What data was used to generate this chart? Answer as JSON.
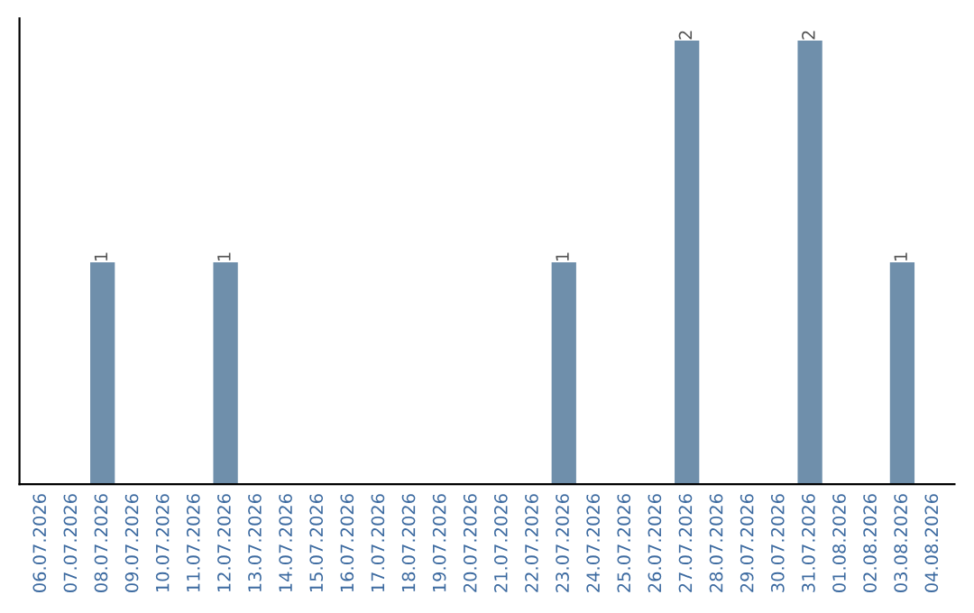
{
  "chart_data": {
    "type": "bar",
    "categories": [
      "06.07.2026",
      "07.07.2026",
      "08.07.2026",
      "09.07.2026",
      "10.07.2026",
      "11.07.2026",
      "12.07.2026",
      "13.07.2026",
      "14.07.2026",
      "15.07.2026",
      "16.07.2026",
      "17.07.2026",
      "18.07.2026",
      "19.07.2026",
      "20.07.2026",
      "21.07.2026",
      "22.07.2026",
      "23.07.2026",
      "24.07.2026",
      "25.07.2026",
      "26.07.2026",
      "27.07.2026",
      "28.07.2026",
      "29.07.2026",
      "30.07.2026",
      "31.07.2026",
      "01.08.2026",
      "02.08.2026",
      "03.08.2026",
      "04.08.2026"
    ],
    "values": [
      0,
      0,
      1,
      0,
      0,
      0,
      1,
      0,
      0,
      0,
      0,
      0,
      0,
      0,
      0,
      0,
      0,
      1,
      0,
      0,
      0,
      2,
      0,
      0,
      0,
      2,
      0,
      0,
      1,
      0
    ],
    "value_labels": [
      null,
      null,
      "1",
      null,
      null,
      null,
      "1",
      null,
      null,
      null,
      null,
      null,
      null,
      null,
      null,
      null,
      null,
      "1",
      null,
      null,
      null,
      "2",
      null,
      null,
      null,
      "2",
      null,
      null,
      "1",
      null
    ],
    "color": "#6f8fab",
    "grid": false,
    "legend": false
  }
}
